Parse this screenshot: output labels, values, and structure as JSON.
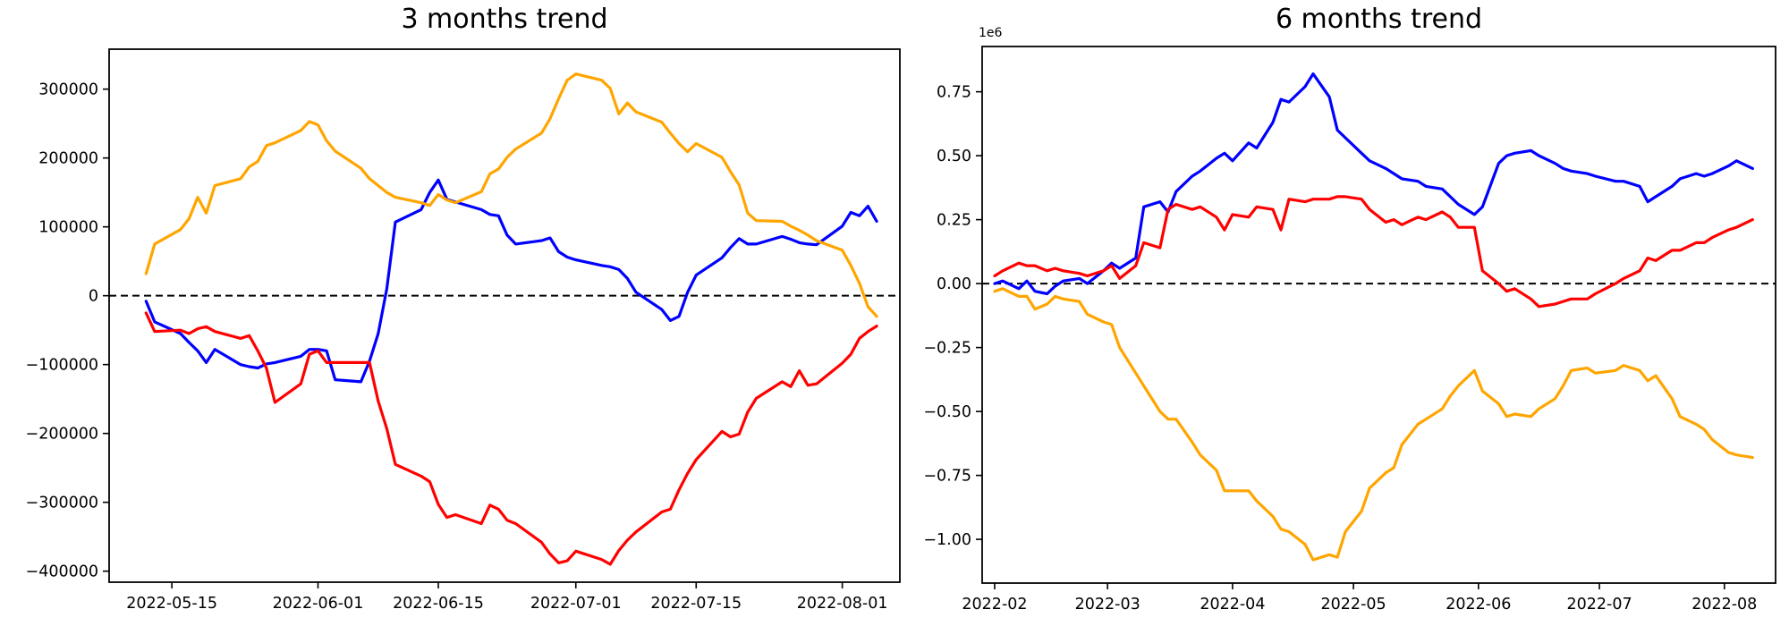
{
  "figure": {
    "background": "#ffffff"
  },
  "chart_data": [
    {
      "type": "line",
      "title": "3 months trend",
      "x_unit": "days since 2022-05-12 (business days)",
      "grid": false,
      "legend": null,
      "zero_dashed_line": true,
      "xlim": [
        -4.3,
        87.7
      ],
      "ylim": [
        -416000,
        358000
      ],
      "xticks": [
        {
          "offset": 3,
          "label": "2022-05-15"
        },
        {
          "offset": 20,
          "label": "2022-06-01"
        },
        {
          "offset": 34,
          "label": "2022-06-15"
        },
        {
          "offset": 50,
          "label": "2022-07-01"
        },
        {
          "offset": 64,
          "label": "2022-07-15"
        },
        {
          "offset": 81,
          "label": "2022-08-01"
        }
      ],
      "yticks": [
        {
          "value": 300000,
          "label": "300000"
        },
        {
          "value": 200000,
          "label": "200000"
        },
        {
          "value": 100000,
          "label": "100000"
        },
        {
          "value": 0,
          "label": "0"
        },
        {
          "value": -100000,
          "label": "−100000"
        },
        {
          "value": -200000,
          "label": "−200000"
        },
        {
          "value": -300000,
          "label": "−300000"
        },
        {
          "value": -400000,
          "label": "−400000"
        }
      ],
      "x": [
        0,
        1,
        4,
        5,
        6,
        7,
        8,
        11,
        12,
        13,
        14,
        15,
        18,
        19,
        20,
        21,
        22,
        25,
        26,
        27,
        28,
        29,
        32,
        33,
        34,
        35,
        36,
        39,
        40,
        41,
        42,
        43,
        46,
        47,
        48,
        49,
        50,
        53,
        54,
        55,
        56,
        57,
        60,
        61,
        62,
        63,
        64,
        67,
        68,
        69,
        70,
        71,
        74,
        75,
        76,
        77,
        78,
        81,
        82,
        83,
        84,
        85
      ],
      "series": [
        {
          "name": "blue",
          "color": "#0000ff",
          "values": [
            -8000,
            -38000,
            -55000,
            -68000,
            -80000,
            -97000,
            -78000,
            -100000,
            -103000,
            -105000,
            -99000,
            -97000,
            -88000,
            -78000,
            -78000,
            -80000,
            -122000,
            -125000,
            -95000,
            -55000,
            10000,
            107000,
            125000,
            150000,
            168000,
            140000,
            136000,
            125000,
            118000,
            116000,
            88000,
            75000,
            80000,
            84000,
            64000,
            56000,
            52000,
            44000,
            42000,
            38000,
            25000,
            5000,
            -20000,
            -36000,
            -30000,
            5000,
            30000,
            55000,
            70000,
            83000,
            75000,
            75000,
            86000,
            82000,
            77000,
            75000,
            74000,
            101000,
            121000,
            116000,
            130000,
            108000
          ]
        },
        {
          "name": "red",
          "color": "#ff0000",
          "values": [
            -25000,
            -52000,
            -50000,
            -55000,
            -48000,
            -45000,
            -52000,
            -62000,
            -58000,
            -80000,
            -105000,
            -155000,
            -128000,
            -85000,
            -80000,
            -97000,
            -97000,
            -97000,
            -97000,
            -153000,
            -193000,
            -245000,
            -262000,
            -270000,
            -303000,
            -322000,
            -318000,
            -331000,
            -304000,
            -310000,
            -326000,
            -331000,
            -358000,
            -375000,
            -388000,
            -385000,
            -371000,
            -383000,
            -390000,
            -370000,
            -355000,
            -343000,
            -314000,
            -310000,
            -282000,
            -258000,
            -238000,
            -197000,
            -205000,
            -201000,
            -169000,
            -149000,
            -125000,
            -132000,
            -109000,
            -130000,
            -128000,
            -98000,
            -85000,
            -62000,
            -52000,
            -44000
          ]
        },
        {
          "name": "orange",
          "color": "#ffa500",
          "values": [
            32000,
            75000,
            96000,
            112000,
            143000,
            120000,
            160000,
            170000,
            187000,
            195000,
            218000,
            222000,
            240000,
            253000,
            248000,
            225000,
            210000,
            185000,
            170000,
            160000,
            150000,
            143000,
            135000,
            131000,
            147000,
            139000,
            135000,
            151000,
            177000,
            184000,
            201000,
            213000,
            236000,
            257000,
            286000,
            313000,
            322000,
            313000,
            301000,
            264000,
            280000,
            267000,
            252000,
            236000,
            221000,
            209000,
            221000,
            201000,
            180000,
            161000,
            120000,
            109000,
            108000,
            101000,
            95000,
            88000,
            80000,
            66000,
            44000,
            18000,
            -16000,
            -30000
          ]
        }
      ]
    },
    {
      "type": "line",
      "title": "6 months trend",
      "offset_text": "1e6",
      "x_unit": "days since 2022-02-01",
      "grid": false,
      "legend": null,
      "zero_dashed_line": true,
      "xlim": [
        -3.1,
        193.7
      ],
      "ylim": [
        -1171000,
        927000
      ],
      "xticks": [
        {
          "offset": 0,
          "label": "2022-02"
        },
        {
          "offset": 28,
          "label": "2022-03"
        },
        {
          "offset": 59,
          "label": "2022-04"
        },
        {
          "offset": 89,
          "label": "2022-05"
        },
        {
          "offset": 120,
          "label": "2022-06"
        },
        {
          "offset": 150,
          "label": "2022-07"
        },
        {
          "offset": 181,
          "label": "2022-08"
        }
      ],
      "yticks": [
        {
          "value": 750000,
          "label": "0.75"
        },
        {
          "value": 500000,
          "label": "0.50"
        },
        {
          "value": 250000,
          "label": "0.25"
        },
        {
          "value": 0,
          "label": "0.00"
        },
        {
          "value": -250000,
          "label": "−0.25"
        },
        {
          "value": -500000,
          "label": "−0.50"
        },
        {
          "value": -750000,
          "label": "−0.75"
        },
        {
          "value": -1000000,
          "label": "−1.00"
        }
      ],
      "x": [
        0,
        2,
        6,
        8,
        10,
        13,
        15,
        17,
        21,
        23,
        27,
        29,
        31,
        35,
        37,
        41,
        43,
        45,
        49,
        51,
        55,
        57,
        59,
        63,
        65,
        69,
        71,
        73,
        77,
        79,
        83,
        85,
        87,
        91,
        93,
        97,
        99,
        101,
        105,
        107,
        111,
        113,
        115,
        119,
        121,
        125,
        127,
        129,
        133,
        135,
        139,
        141,
        143,
        147,
        149,
        154,
        156,
        160,
        162,
        164,
        168,
        170,
        174,
        176,
        178,
        182,
        184,
        188
      ],
      "series": [
        {
          "name": "blue",
          "color": "#0000ff",
          "values": [
            0,
            10000,
            -20000,
            10000,
            -30000,
            -40000,
            -10000,
            10000,
            20000,
            0,
            50000,
            80000,
            60000,
            100000,
            300000,
            320000,
            280000,
            360000,
            420000,
            440000,
            490000,
            510000,
            480000,
            550000,
            530000,
            630000,
            720000,
            710000,
            770000,
            820000,
            730000,
            600000,
            570000,
            510000,
            480000,
            450000,
            430000,
            410000,
            400000,
            380000,
            370000,
            340000,
            310000,
            270000,
            300000,
            470000,
            500000,
            510000,
            520000,
            500000,
            470000,
            450000,
            440000,
            430000,
            420000,
            400000,
            400000,
            380000,
            320000,
            340000,
            380000,
            410000,
            430000,
            420000,
            430000,
            460000,
            480000,
            450000
          ]
        },
        {
          "name": "red",
          "color": "#ff0000",
          "values": [
            30000,
            50000,
            80000,
            70000,
            70000,
            50000,
            60000,
            50000,
            40000,
            30000,
            50000,
            70000,
            20000,
            70000,
            160000,
            140000,
            290000,
            310000,
            290000,
            300000,
            260000,
            210000,
            270000,
            260000,
            300000,
            290000,
            210000,
            330000,
            320000,
            330000,
            330000,
            340000,
            340000,
            330000,
            290000,
            240000,
            250000,
            230000,
            260000,
            250000,
            280000,
            260000,
            220000,
            220000,
            50000,
            0,
            -30000,
            -20000,
            -60000,
            -90000,
            -80000,
            -70000,
            -60000,
            -60000,
            -40000,
            0,
            20000,
            50000,
            100000,
            90000,
            130000,
            130000,
            160000,
            160000,
            180000,
            210000,
            220000,
            250000
          ]
        },
        {
          "name": "orange",
          "color": "#ffa500",
          "values": [
            -30000,
            -20000,
            -50000,
            -50000,
            -100000,
            -80000,
            -50000,
            -60000,
            -70000,
            -120000,
            -150000,
            -160000,
            -250000,
            -350000,
            -400000,
            -500000,
            -530000,
            -530000,
            -620000,
            -670000,
            -730000,
            -810000,
            -810000,
            -810000,
            -850000,
            -910000,
            -960000,
            -970000,
            -1020000,
            -1080000,
            -1060000,
            -1070000,
            -970000,
            -890000,
            -800000,
            -740000,
            -720000,
            -630000,
            -550000,
            -530000,
            -490000,
            -440000,
            -400000,
            -340000,
            -420000,
            -470000,
            -520000,
            -510000,
            -520000,
            -490000,
            -450000,
            -400000,
            -340000,
            -330000,
            -350000,
            -340000,
            -320000,
            -340000,
            -380000,
            -360000,
            -450000,
            -520000,
            -550000,
            -570000,
            -610000,
            -660000,
            -670000,
            -680000
          ]
        }
      ]
    }
  ]
}
